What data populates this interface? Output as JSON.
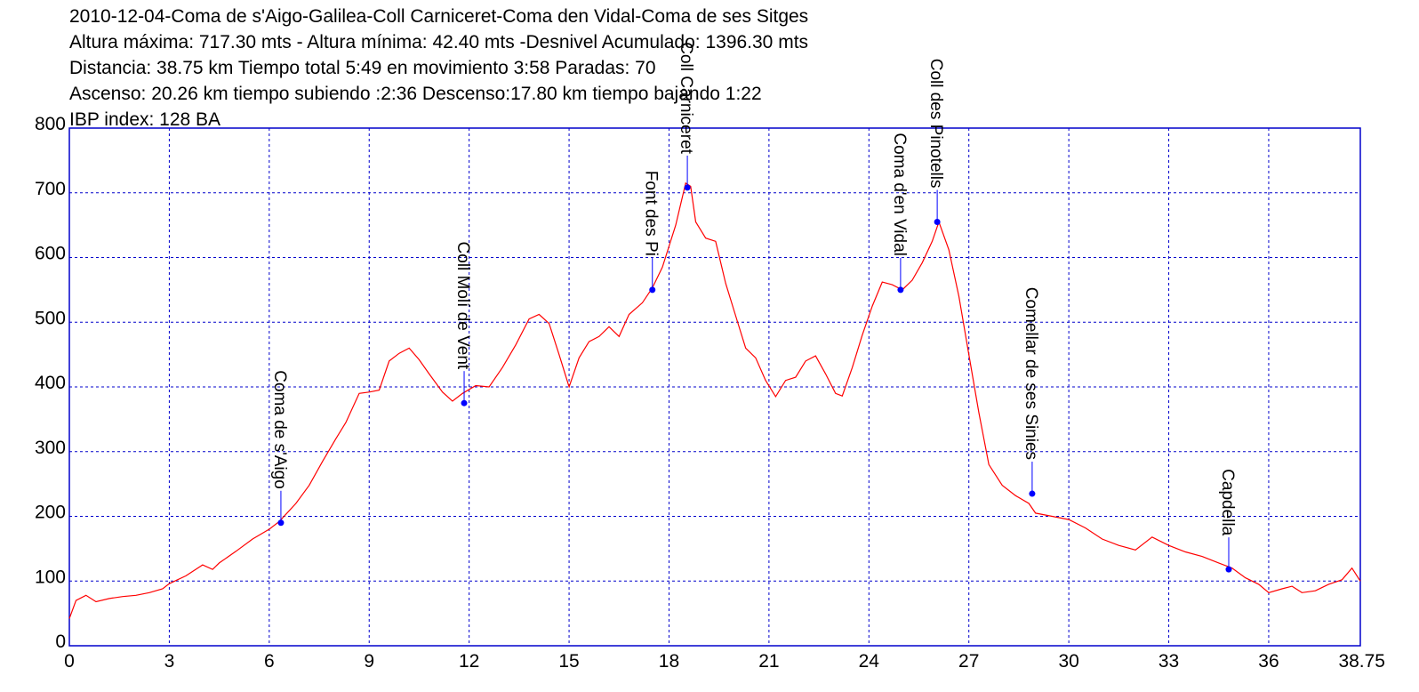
{
  "header": {
    "line1": "2010-12-04-Coma de s'Aigo-Galilea-Coll Carniceret-Coma den Vidal-Coma de ses Sitges",
    "line2": "Altura máxima: 717.30 mts - Altura mínima: 42.40 mts -Desnivel Acumulado: 1396.30 mts",
    "line3": "Distancia: 38.75 km  Tiempo total 5:49  en movimiento 3:58 Paradas: 70",
    "line4": "Ascenso: 20.26 km  tiempo subiendo :2:36  Descenso:17.80 km tiempo bajando 1:22",
    "line5": " IBP index: 128 BA"
  },
  "colors": {
    "profile": "#ff0000",
    "grid": "#0000cc",
    "frame": "#0000cc",
    "marker": "#0000ff"
  },
  "chart_data": {
    "type": "line",
    "xlim": [
      0,
      38.75
    ],
    "ylim": [
      0,
      800
    ],
    "x_ticks": [
      "0",
      "3",
      "6",
      "9",
      "12",
      "15",
      "18",
      "21",
      "24",
      "27",
      "30",
      "33",
      "36",
      "38.75"
    ],
    "y_ticks": [
      "0",
      "100",
      "200",
      "300",
      "400",
      "500",
      "600",
      "700",
      "800"
    ],
    "x_tick_values": [
      0,
      3,
      6,
      9,
      12,
      15,
      18,
      21,
      24,
      27,
      30,
      33,
      36,
      38.75
    ],
    "y_tick_values": [
      0,
      100,
      200,
      300,
      400,
      500,
      600,
      700,
      800
    ],
    "grid": true,
    "profile": {
      "x": [
        0,
        0.2,
        0.5,
        0.8,
        1.2,
        1.6,
        2.0,
        2.4,
        2.8,
        3.0,
        3.5,
        4.0,
        4.3,
        4.5,
        5.0,
        5.5,
        6.0,
        6.3,
        6.8,
        7.2,
        7.6,
        8.0,
        8.3,
        8.7,
        9.0,
        9.3,
        9.6,
        9.9,
        10.2,
        10.5,
        10.8,
        11.2,
        11.5,
        11.8,
        12.2,
        12.6,
        13.0,
        13.4,
        13.8,
        14.1,
        14.4,
        14.7,
        15.0,
        15.3,
        15.6,
        15.9,
        16.2,
        16.5,
        16.8,
        17.2,
        17.5,
        17.8,
        18.2,
        18.5,
        18.65,
        18.8,
        19.1,
        19.4,
        19.7,
        20.0,
        20.3,
        20.6,
        20.9,
        21.2,
        21.5,
        21.8,
        22.1,
        22.4,
        22.7,
        23.0,
        23.2,
        23.5,
        23.8,
        24.1,
        24.4,
        24.7,
        25.0,
        25.3,
        25.6,
        25.9,
        26.1,
        26.4,
        26.7,
        27.0,
        27.3,
        27.6,
        28.0,
        28.4,
        28.8,
        29.0,
        29.5,
        30.0,
        30.5,
        31.0,
        31.5,
        32.0,
        32.5,
        33.0,
        33.5,
        34.0,
        34.5,
        34.9,
        35.3,
        35.7,
        36.0,
        36.4,
        36.7,
        37.0,
        37.4,
        37.8,
        38.2,
        38.5,
        38.75
      ],
      "y": [
        42,
        70,
        78,
        68,
        73,
        76,
        78,
        82,
        88,
        96,
        108,
        125,
        118,
        128,
        146,
        165,
        180,
        192,
        220,
        248,
        285,
        320,
        345,
        390,
        392,
        395,
        440,
        452,
        460,
        442,
        420,
        392,
        378,
        390,
        402,
        400,
        430,
        465,
        505,
        512,
        498,
        450,
        400,
        445,
        470,
        478,
        493,
        478,
        512,
        530,
        553,
        585,
        650,
        715,
        710,
        655,
        630,
        625,
        560,
        510,
        460,
        445,
        410,
        385,
        410,
        415,
        440,
        448,
        420,
        390,
        386,
        430,
        480,
        525,
        562,
        558,
        550,
        565,
        592,
        625,
        655,
        612,
        540,
        450,
        360,
        280,
        248,
        232,
        220,
        205,
        200,
        195,
        182,
        165,
        155,
        148,
        168,
        155,
        145,
        138,
        128,
        120,
        105,
        95,
        82,
        88,
        92,
        82,
        85,
        95,
        102,
        120,
        100
      ]
    },
    "waypoints": [
      {
        "name": "Coma de s'Aigo",
        "x": 6.35,
        "y": 190
      },
      {
        "name": "Coll Molí de Vent",
        "x": 11.85,
        "y": 375
      },
      {
        "name": "Font des Pi",
        "x": 17.5,
        "y": 550
      },
      {
        "name": "Coll Carniceret",
        "x": 18.55,
        "y": 708
      },
      {
        "name": "Coma d'en Vidal",
        "x": 24.95,
        "y": 550
      },
      {
        "name": "Coll des Pinotells",
        "x": 26.05,
        "y": 655
      },
      {
        "name": "Comellar de ses Sinies",
        "x": 28.9,
        "y": 235
      },
      {
        "name": "Capdella",
        "x": 34.8,
        "y": 118
      }
    ]
  }
}
